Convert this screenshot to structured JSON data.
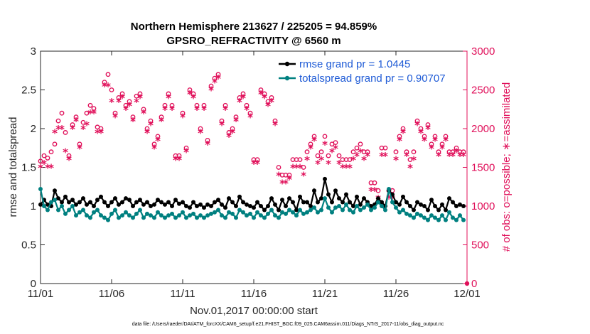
{
  "chart_data": {
    "type": "line",
    "title": "Northern Hemisphere 213627 / 225205 = 94.859%",
    "subtitle": "GPSRO_REFRACTIVITY @ 6560 m",
    "xlabel": "Nov.01,2017 00:00:00 start",
    "ylabel": "rmse and totalspread",
    "ylabel_right": "# of obs: o=possible; ∗=assimilated",
    "footnote": "data file: /Users/raeder/DAI/ATM_forcXX/CAM6_setup/f.e21.FHIST_BGC.f09_025.CAM6assim.011/Diags_NTrS_2017-11/obs_diag_output.nc",
    "x_ticks": [
      "11/01",
      "11/06",
      "11/11",
      "11/16",
      "11/21",
      "11/26",
      "12/01"
    ],
    "x_tick_days": [
      0,
      5,
      10,
      15,
      20,
      25,
      30
    ],
    "xlim": [
      0,
      30
    ],
    "ylim": [
      0,
      3
    ],
    "y_ticks": [
      "0",
      "0.5",
      "1",
      "1.5",
      "2",
      "2.5",
      "3"
    ],
    "ylim_right": [
      0,
      3000
    ],
    "y_ticks_right": [
      "0",
      "500",
      "1000",
      "1500",
      "2000",
      "2500",
      "3000"
    ],
    "grid": false,
    "legend_position": "top-right",
    "colors": {
      "rmse": "#000000",
      "spread": "#008080",
      "obs": "#e0105a",
      "legend_text": "#1f5bd6"
    },
    "x_days": [
      0.0,
      0.25,
      0.5,
      0.75,
      1.0,
      1.25,
      1.5,
      1.75,
      2.0,
      2.25,
      2.5,
      2.75,
      3.0,
      3.25,
      3.5,
      3.75,
      4.0,
      4.25,
      4.5,
      4.75,
      5.0,
      5.25,
      5.5,
      5.75,
      6.0,
      6.25,
      6.5,
      6.75,
      7.0,
      7.25,
      7.5,
      7.75,
      8.0,
      8.25,
      8.5,
      8.75,
      9.0,
      9.25,
      9.5,
      9.75,
      10.0,
      10.25,
      10.5,
      10.75,
      11.0,
      11.25,
      11.5,
      11.75,
      12.0,
      12.25,
      12.5,
      12.75,
      13.0,
      13.25,
      13.5,
      13.75,
      14.0,
      14.25,
      14.5,
      14.75,
      15.0,
      15.25,
      15.5,
      15.75,
      16.0,
      16.25,
      16.5,
      16.75,
      17.0,
      17.25,
      17.5,
      17.75,
      18.0,
      18.25,
      18.5,
      18.75,
      19.0,
      19.25,
      19.5,
      19.75,
      20.0,
      20.25,
      20.5,
      20.75,
      21.0,
      21.25,
      21.5,
      21.75,
      22.0,
      22.25,
      22.5,
      22.75,
      23.0,
      23.25,
      23.5,
      23.75,
      24.0,
      24.25,
      24.5,
      24.75,
      25.0,
      25.25,
      25.5,
      25.75,
      26.0,
      26.25,
      26.5,
      26.75,
      27.0,
      27.25,
      27.5,
      27.75,
      28.0,
      28.25,
      28.5,
      28.75,
      29.0,
      29.25,
      29.5,
      29.75
    ],
    "series": [
      {
        "name": "rmse grand pr = 1.0445",
        "values": [
          1.02,
          1.08,
          1.02,
          1.0,
          1.2,
          1.1,
          1.05,
          1.12,
          1.05,
          1.08,
          1.02,
          1.05,
          1.1,
          1.02,
          1.05,
          1.0,
          1.08,
          1.12,
          1.05,
          1.0,
          1.05,
          1.1,
          1.02,
          1.05,
          1.1,
          1.08,
          1.0,
          1.05,
          1.08,
          1.02,
          1.05,
          1.0,
          1.02,
          1.08,
          1.05,
          1.02,
          1.05,
          1.0,
          1.08,
          1.03,
          1.05,
          1.0,
          0.98,
          1.05,
          1.0,
          1.02,
          0.98,
          1.02,
          1.0,
          1.05,
          1.08,
          1.02,
          0.98,
          1.1,
          1.05,
          1.0,
          1.12,
          1.05,
          1.02,
          1.0,
          0.98,
          1.05,
          1.0,
          0.95,
          1.0,
          1.1,
          1.02,
          0.95,
          1.08,
          1.0,
          1.1,
          1.05,
          0.95,
          1.12,
          1.05,
          1.05,
          1.0,
          1.2,
          1.05,
          1.1,
          1.35,
          1.15,
          1.05,
          1.2,
          1.1,
          1.05,
          1.15,
          1.05,
          1.0,
          1.12,
          1.02,
          1.1,
          1.05,
          1.0,
          1.02,
          1.1,
          1.05,
          1.0,
          1.2,
          1.15,
          1.05,
          1.02,
          1.12,
          1.05,
          1.0,
          0.95,
          1.05,
          1.02,
          1.0,
          0.95,
          1.08,
          1.0,
          0.95,
          1.02,
          0.95,
          1.1,
          1.05,
          1.0,
          1.02,
          1.0
        ]
      },
      {
        "name": "totalspread grand pr = 0.90707",
        "values": [
          1.22,
          1.0,
          0.95,
          1.05,
          1.08,
          0.95,
          1.0,
          0.9,
          0.95,
          1.0,
          0.88,
          0.92,
          0.95,
          0.88,
          0.85,
          0.92,
          0.95,
          0.88,
          0.85,
          0.82,
          0.9,
          0.95,
          0.85,
          0.88,
          0.92,
          0.88,
          0.85,
          0.9,
          0.95,
          0.85,
          0.9,
          0.88,
          0.85,
          0.92,
          0.88,
          0.85,
          0.88,
          0.9,
          0.85,
          0.88,
          0.92,
          0.85,
          0.88,
          0.9,
          0.85,
          0.88,
          0.85,
          0.88,
          0.9,
          0.92,
          0.95,
          0.88,
          0.85,
          0.92,
          0.9,
          0.85,
          0.95,
          0.92,
          0.88,
          0.9,
          0.85,
          0.92,
          0.88,
          0.85,
          0.9,
          0.95,
          0.88,
          0.85,
          0.92,
          0.9,
          0.95,
          0.92,
          0.88,
          0.95,
          0.9,
          0.92,
          0.95,
          0.98,
          0.92,
          0.95,
          1.1,
          0.98,
          0.92,
          0.98,
          1.0,
          0.95,
          1.02,
          0.95,
          0.92,
          1.0,
          0.95,
          0.98,
          1.02,
          0.95,
          0.98,
          1.05,
          1.0,
          0.95,
          1.22,
          1.05,
          0.98,
          0.92,
          0.95,
          0.9,
          0.88,
          0.85,
          0.9,
          0.88,
          0.85,
          0.82,
          0.88,
          0.85,
          0.82,
          0.88,
          0.82,
          0.92,
          0.85,
          0.82,
          0.88,
          0.82
        ]
      }
    ],
    "obs_possible": [
      1580,
      1650,
      1620,
      1700,
      1800,
      2100,
      2200,
      1950,
      1650,
      2050,
      2150,
      1800,
      2080,
      2200,
      2300,
      2260,
      2020,
      2000,
      2600,
      2700,
      2500,
      2200,
      2400,
      2450,
      2300,
      2350,
      2150,
      2420,
      2450,
      2250,
      2000,
      2100,
      1800,
      1900,
      2150,
      2300,
      2450,
      2300,
      1650,
      1650,
      2200,
      1750,
      2500,
      2450,
      2300,
      2000,
      2300,
      1850,
      2550,
      2650,
      2700,
      2100,
      2300,
      1950,
      2000,
      2150,
      2400,
      2450,
      2300,
      2200,
      1600,
      1600,
      2500,
      2450,
      2350,
      2400,
      2100,
      1500,
      1400,
      1400,
      1400,
      1600,
      1600,
      1600,
      1500,
      1700,
      1800,
      1900,
      1650,
      1700,
      1900,
      1650,
      1800,
      1820,
      1650,
      1600,
      1600,
      1600,
      1700,
      1750,
      1800,
      1700,
      1700,
      1300,
      1300,
      1200,
      1750,
      1750,
      1200,
      1200,
      1700,
      1900,
      2000,
      1700,
      1600,
      1700,
      2100,
      2000,
      1900,
      2050,
      1800,
      1900,
      1700,
      1800,
      1900,
      1700,
      1700,
      1750,
      1700,
      1700
    ],
    "obs_assimilated": [
      1500,
      1550,
      1500,
      1500,
      1950,
      2000,
      2000,
      1700,
      1600,
      2000,
      2100,
      1750,
      2000,
      2050,
      2200,
      2200,
      1950,
      1950,
      2550,
      2550,
      2350,
      2150,
      2350,
      2400,
      2250,
      2300,
      2100,
      2350,
      2400,
      2200,
      1950,
      2050,
      1750,
      1850,
      2100,
      2250,
      2400,
      2250,
      1600,
      1600,
      2150,
      1700,
      2450,
      2400,
      2250,
      1950,
      2250,
      1800,
      2500,
      2600,
      2650,
      2050,
      2250,
      1900,
      1950,
      2100,
      2350,
      2400,
      2250,
      2150,
      1550,
      1550,
      2450,
      2400,
      2300,
      2350,
      2050,
      1400,
      1300,
      1300,
      1350,
      1500,
      1500,
      1500,
      1400,
      1600,
      1750,
      1850,
      1550,
      1600,
      1800,
      1550,
      1700,
      1750,
      1550,
      1500,
      1500,
      1500,
      1600,
      1650,
      1700,
      1600,
      1650,
      1200,
      1200,
      1100,
      1650,
      1650,
      1100,
      1100,
      1600,
      1850,
      1950,
      1650,
      1500,
      1600,
      2050,
      1950,
      1850,
      2000,
      1750,
      1850,
      1650,
      1750,
      1850,
      1650,
      1650,
      1700,
      1650,
      1650
    ]
  }
}
